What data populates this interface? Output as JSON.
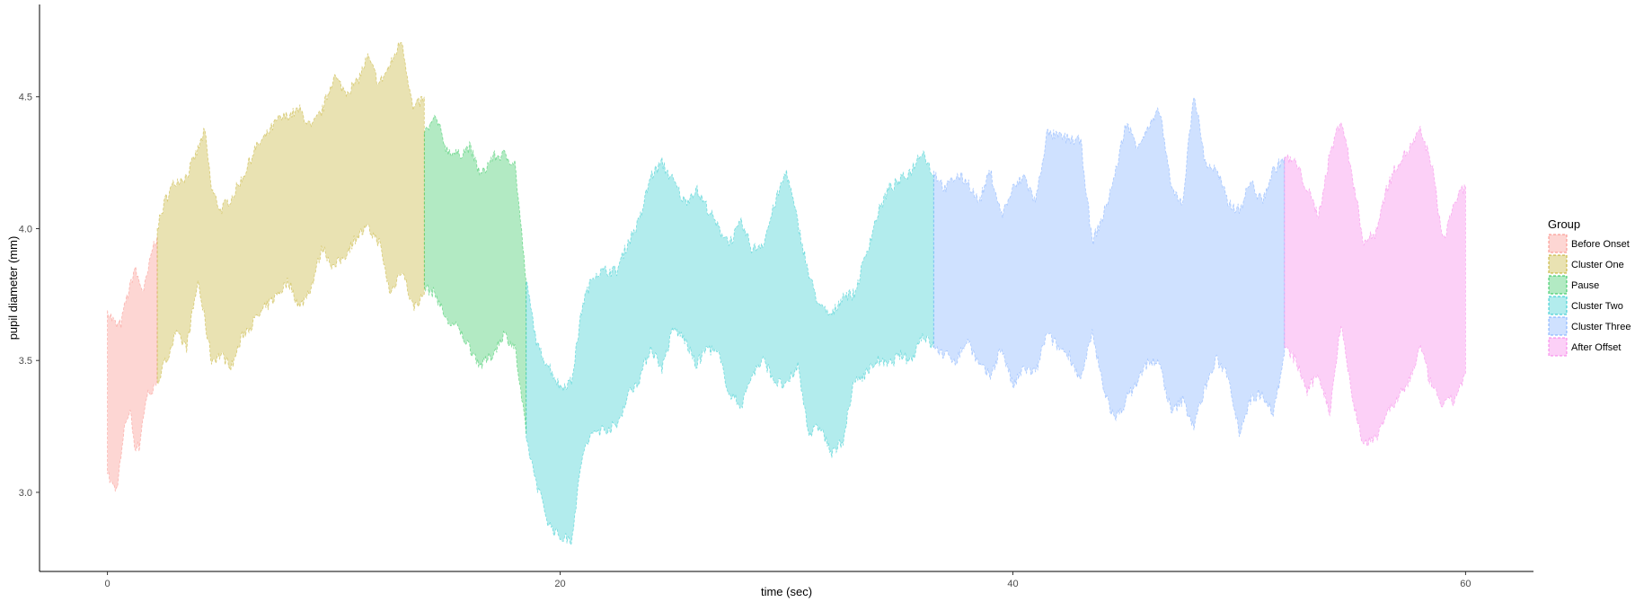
{
  "chart_data": {
    "type": "area",
    "title": "",
    "xlabel": "time (sec)",
    "ylabel": "pupil diameter (mm)",
    "xlim": [
      -3,
      63
    ],
    "ylim": [
      2.7,
      4.85
    ],
    "xticks": [
      0,
      20,
      40,
      60
    ],
    "yticks": [
      3.0,
      3.5,
      4.0,
      4.5
    ],
    "ytick_labels": [
      "3.0",
      "3.5",
      "4.0",
      "4.5"
    ],
    "grid": false,
    "legend": {
      "title": "Group",
      "placement": "right"
    },
    "series": [
      {
        "name": "Before Onset",
        "color": "#F8766D",
        "x": [
          0.0,
          0.2,
          0.4,
          0.6,
          0.8,
          1.0,
          1.2,
          1.4,
          1.6,
          1.8,
          2.0,
          2.2
        ],
        "upper": [
          3.69,
          3.66,
          3.63,
          3.64,
          3.72,
          3.78,
          3.85,
          3.8,
          3.76,
          3.84,
          3.93,
          3.97
        ],
        "lower": [
          3.07,
          3.03,
          3.01,
          3.13,
          3.27,
          3.31,
          3.18,
          3.17,
          3.3,
          3.38,
          3.38,
          3.42
        ]
      },
      {
        "name": "Cluster One",
        "color": "#B79F00",
        "x": [
          2.2,
          2.6,
          3.0,
          3.5,
          4.0,
          4.3,
          4.6,
          5.0,
          5.5,
          6.0,
          6.5,
          7.0,
          7.5,
          8.0,
          8.5,
          9.0,
          9.5,
          10.0,
          10.5,
          11.0,
          11.5,
          12.0,
          12.5,
          13.0,
          13.5,
          14.0
        ],
        "upper": [
          4.0,
          4.12,
          4.18,
          4.2,
          4.3,
          4.37,
          4.15,
          4.07,
          4.12,
          4.2,
          4.3,
          4.35,
          4.41,
          4.43,
          4.45,
          4.38,
          4.45,
          4.58,
          4.52,
          4.55,
          4.65,
          4.55,
          4.62,
          4.72,
          4.45,
          4.5
        ],
        "lower": [
          3.42,
          3.5,
          3.6,
          3.55,
          3.8,
          3.65,
          3.5,
          3.52,
          3.48,
          3.6,
          3.65,
          3.7,
          3.75,
          3.8,
          3.7,
          3.78,
          3.93,
          3.85,
          3.9,
          3.97,
          4.0,
          3.95,
          3.75,
          3.85,
          3.7,
          3.75
        ]
      },
      {
        "name": "Pause",
        "color": "#00BA38",
        "x": [
          14.0,
          14.5,
          15.0,
          15.5,
          16.0,
          16.5,
          17.0,
          17.5,
          18.0,
          18.5
        ],
        "upper": [
          4.36,
          4.42,
          4.3,
          4.28,
          4.31,
          4.2,
          4.27,
          4.28,
          4.25,
          3.8
        ],
        "lower": [
          3.78,
          3.75,
          3.65,
          3.62,
          3.55,
          3.48,
          3.52,
          3.6,
          3.55,
          3.22
        ]
      },
      {
        "name": "Cluster Two",
        "color": "#00BFC4",
        "x": [
          18.5,
          19.0,
          19.5,
          20.0,
          20.5,
          21.0,
          21.5,
          22.0,
          22.5,
          23.0,
          23.5,
          24.0,
          24.5,
          25.0,
          25.5,
          26.0,
          26.5,
          27.0,
          27.5,
          28.0,
          28.5,
          29.0,
          29.5,
          30.0,
          30.5,
          31.0,
          31.5,
          32.0,
          32.5,
          33.0,
          33.5,
          34.0,
          34.5,
          35.0,
          35.5,
          36.0,
          36.5
        ],
        "upper": [
          3.8,
          3.55,
          3.48,
          3.4,
          3.42,
          3.72,
          3.83,
          3.84,
          3.84,
          3.95,
          4.03,
          4.2,
          4.25,
          4.18,
          4.1,
          4.15,
          4.08,
          4.0,
          3.95,
          4.02,
          3.92,
          3.95,
          4.1,
          4.22,
          4.02,
          3.82,
          3.7,
          3.67,
          3.75,
          3.75,
          3.9,
          4.05,
          4.15,
          4.18,
          4.22,
          4.3,
          4.2
        ],
        "lower": [
          3.2,
          3.02,
          2.88,
          2.83,
          2.82,
          3.15,
          3.23,
          3.24,
          3.25,
          3.37,
          3.43,
          3.55,
          3.47,
          3.62,
          3.58,
          3.48,
          3.55,
          3.52,
          3.37,
          3.33,
          3.45,
          3.5,
          3.42,
          3.4,
          3.48,
          3.22,
          3.25,
          3.14,
          3.2,
          3.42,
          3.45,
          3.5,
          3.48,
          3.52,
          3.5,
          3.6,
          3.55
        ]
      },
      {
        "name": "Cluster Three",
        "color": "#619CFF",
        "x": [
          36.5,
          37.0,
          37.5,
          38.0,
          38.5,
          39.0,
          39.5,
          40.0,
          40.5,
          41.0,
          41.5,
          42.0,
          42.5,
          43.0,
          43.5,
          44.0,
          44.5,
          45.0,
          45.5,
          46.0,
          46.5,
          47.0,
          47.5,
          48.0,
          48.5,
          49.0,
          49.5,
          50.0,
          50.5,
          51.0,
          51.5,
          52.0
        ],
        "upper": [
          4.22,
          4.15,
          4.2,
          4.18,
          4.1,
          4.22,
          4.05,
          4.15,
          4.2,
          4.1,
          4.36,
          4.35,
          4.34,
          4.33,
          3.95,
          4.05,
          4.2,
          4.4,
          4.32,
          4.38,
          4.45,
          4.15,
          4.1,
          4.52,
          4.25,
          4.22,
          4.1,
          4.07,
          4.18,
          4.1,
          4.22,
          4.27
        ],
        "lower": [
          3.55,
          3.52,
          3.5,
          3.58,
          3.48,
          3.44,
          3.55,
          3.4,
          3.47,
          3.45,
          3.6,
          3.55,
          3.52,
          3.42,
          3.6,
          3.4,
          3.27,
          3.35,
          3.42,
          3.5,
          3.48,
          3.3,
          3.35,
          3.25,
          3.4,
          3.5,
          3.45,
          3.23,
          3.35,
          3.38,
          3.3,
          3.52
        ]
      },
      {
        "name": "After Offset",
        "color": "#F564E3",
        "x": [
          52.0,
          52.5,
          53.0,
          53.5,
          54.0,
          54.5,
          55.0,
          55.5,
          56.0,
          56.5,
          57.0,
          57.5,
          58.0,
          58.5,
          59.0,
          59.5,
          60.0
        ],
        "upper": [
          4.27,
          4.25,
          4.15,
          4.05,
          4.28,
          4.42,
          4.2,
          3.95,
          3.98,
          4.15,
          4.25,
          4.3,
          4.37,
          4.25,
          3.95,
          4.1,
          4.16
        ],
        "lower": [
          3.55,
          3.5,
          3.38,
          3.45,
          3.3,
          3.65,
          3.35,
          3.18,
          3.2,
          3.3,
          3.35,
          3.42,
          3.55,
          3.4,
          3.33,
          3.35,
          3.45
        ]
      }
    ]
  }
}
